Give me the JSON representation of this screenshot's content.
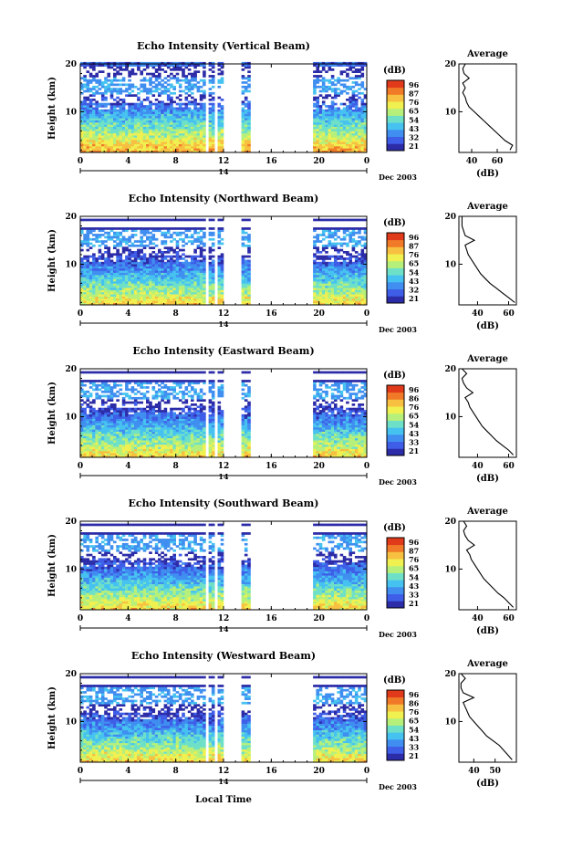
{
  "figure": {
    "xlabel": "Local Time",
    "date_label": "Dec 2003",
    "day_label": "14",
    "colorbar_unit": "(dB)",
    "colorbar_ticks": [
      "96",
      "87",
      "76",
      "65",
      "54",
      "43",
      "32",
      "21"
    ],
    "avg_title": "Average",
    "avg_xlabel": "(dB)",
    "colors": [
      "#2c2ca8",
      "#3f5ee8",
      "#3f8ef0",
      "#46c2f0",
      "#6fe0c8",
      "#b6f07a",
      "#f0f050",
      "#f7c040",
      "#f07a28",
      "#e03a1a"
    ]
  },
  "chart_data": [
    {
      "type": "heatmap",
      "title": "Echo Intensity (Vertical Beam)",
      "ylabel": "Height (km)",
      "xlim": [
        0,
        24
      ],
      "ylim": [
        1.5,
        20
      ],
      "x_ticks": [
        "0",
        "4",
        "8",
        "12",
        "16",
        "20",
        "0"
      ],
      "y_ticks": [
        "20",
        "10"
      ],
      "colorbar": {
        "unit": "(dB)",
        "ticks": [
          "96",
          "87",
          "76",
          "65",
          "54",
          "43",
          "32",
          "21"
        ]
      },
      "data_gaps_hours": [
        [
          10.5,
          10.8
        ],
        [
          11.2,
          11.5
        ],
        [
          11.9,
          13.4
        ],
        [
          14.3,
          19.5
        ]
      ],
      "average_profile": {
        "title": "Average",
        "xlabel": "(dB)",
        "x_ticks": [
          "40",
          "60"
        ],
        "xlim": [
          30,
          75
        ],
        "height_km": [
          2,
          3,
          4,
          5,
          6,
          7,
          8,
          9,
          10,
          11,
          12,
          13,
          14,
          15,
          16,
          17,
          18,
          19,
          20
        ],
        "db": [
          70,
          72,
          66,
          62,
          58,
          54,
          50,
          46,
          42,
          38,
          36,
          35,
          33,
          35,
          33,
          38,
          34,
          33,
          35
        ]
      }
    },
    {
      "type": "heatmap",
      "title": "Echo Intensity (Northward Beam)",
      "ylabel": "Height (km)",
      "xlim": [
        0,
        24
      ],
      "ylim": [
        1.5,
        20
      ],
      "x_ticks": [
        "0",
        "4",
        "8",
        "12",
        "16",
        "20",
        "0"
      ],
      "y_ticks": [
        "20",
        "10"
      ],
      "colorbar": {
        "unit": "(dB)",
        "ticks": [
          "96",
          "87",
          "76",
          "65",
          "54",
          "43",
          "32",
          "21"
        ]
      },
      "data_gaps_hours": [
        [
          10.5,
          10.8
        ],
        [
          11.2,
          11.5
        ],
        [
          11.9,
          13.4
        ],
        [
          14.3,
          19.5
        ]
      ],
      "average_profile": {
        "title": "Average",
        "xlabel": "(dB)",
        "x_ticks": [
          "40",
          "60"
        ],
        "xlim": [
          28,
          65
        ],
        "height_km": [
          2,
          3,
          4,
          5,
          6,
          7,
          8,
          9,
          10,
          11,
          12,
          13,
          14,
          15,
          16,
          17,
          18,
          19,
          20
        ],
        "db": [
          64,
          60,
          56,
          52,
          48,
          45,
          42,
          40,
          38,
          36,
          34,
          33,
          32,
          38,
          32,
          31,
          30,
          30,
          30
        ]
      }
    },
    {
      "type": "heatmap",
      "title": "Echo Intensity (Eastward Beam)",
      "ylabel": "Height (km)",
      "xlim": [
        0,
        24
      ],
      "ylim": [
        1.5,
        20
      ],
      "x_ticks": [
        "0",
        "4",
        "8",
        "12",
        "16",
        "20",
        "0"
      ],
      "y_ticks": [
        "20",
        "10"
      ],
      "colorbar": {
        "unit": "(dB)",
        "ticks": [
          "96",
          "86",
          "76",
          "65",
          "54",
          "43",
          "33",
          "21"
        ]
      },
      "data_gaps_hours": [
        [
          10.5,
          10.8
        ],
        [
          11.2,
          11.5
        ],
        [
          11.9,
          13.4
        ],
        [
          14.3,
          19.5
        ]
      ],
      "average_profile": {
        "title": "Average",
        "xlabel": "(dB)",
        "x_ticks": [
          "40",
          "60"
        ],
        "xlim": [
          28,
          65
        ],
        "height_km": [
          2,
          3,
          4,
          5,
          6,
          7,
          8,
          9,
          10,
          11,
          12,
          13,
          14,
          15,
          16,
          17,
          18,
          19,
          20
        ],
        "db": [
          63,
          60,
          56,
          52,
          49,
          46,
          43,
          41,
          39,
          37,
          35,
          34,
          32,
          37,
          33,
          31,
          30,
          33,
          30
        ]
      }
    },
    {
      "type": "heatmap",
      "title": "Echo Intensity (Southward Beam)",
      "ylabel": "Height (km)",
      "xlim": [
        0,
        24
      ],
      "ylim": [
        1.5,
        20
      ],
      "x_ticks": [
        "0",
        "4",
        "8",
        "12",
        "16",
        "20",
        "0"
      ],
      "y_ticks": [
        "20",
        "10"
      ],
      "colorbar": {
        "unit": "(dB)",
        "ticks": [
          "96",
          "87",
          "76",
          "65",
          "54",
          "43",
          "33",
          "21"
        ]
      },
      "data_gaps_hours": [
        [
          10.5,
          10.8
        ],
        [
          11.2,
          11.5
        ],
        [
          11.9,
          13.4
        ],
        [
          14.3,
          19.5
        ]
      ],
      "average_profile": {
        "title": "Average",
        "xlabel": "(dB)",
        "x_ticks": [
          "40",
          "60"
        ],
        "xlim": [
          28,
          65
        ],
        "height_km": [
          2,
          3,
          4,
          5,
          6,
          7,
          8,
          9,
          10,
          11,
          12,
          13,
          14,
          15,
          16,
          17,
          18,
          19,
          20
        ],
        "db": [
          63,
          60,
          57,
          53,
          50,
          47,
          44,
          42,
          40,
          38,
          36,
          35,
          33,
          38,
          34,
          32,
          31,
          33,
          31
        ]
      }
    },
    {
      "type": "heatmap",
      "title": "Echo Intensity (Westward Beam)",
      "ylabel": "Height (km)",
      "xlim": [
        0,
        24
      ],
      "ylim": [
        1.5,
        20
      ],
      "x_ticks": [
        "0",
        "4",
        "8",
        "12",
        "16",
        "20",
        "0"
      ],
      "y_ticks": [
        "20",
        "10"
      ],
      "colorbar": {
        "unit": "(dB)",
        "ticks": [
          "96",
          "86",
          "76",
          "65",
          "54",
          "43",
          "33",
          "21"
        ]
      },
      "data_gaps_hours": [
        [
          10.5,
          10.8
        ],
        [
          11.2,
          11.5
        ],
        [
          11.9,
          13.4
        ],
        [
          14.3,
          19.5
        ]
      ],
      "average_profile": {
        "title": "Average",
        "xlabel": "(dB)",
        "x_ticks": [
          "40",
          "50"
        ],
        "xlim": [
          33,
          60
        ],
        "height_km": [
          2,
          3,
          4,
          5,
          6,
          7,
          8,
          9,
          10,
          11,
          12,
          13,
          14,
          15,
          16,
          17,
          18,
          19,
          20
        ],
        "db": [
          58,
          56,
          54,
          52,
          49,
          46,
          44,
          42,
          40,
          38,
          37,
          36,
          35,
          40,
          35,
          34,
          34,
          36,
          34
        ]
      }
    }
  ]
}
